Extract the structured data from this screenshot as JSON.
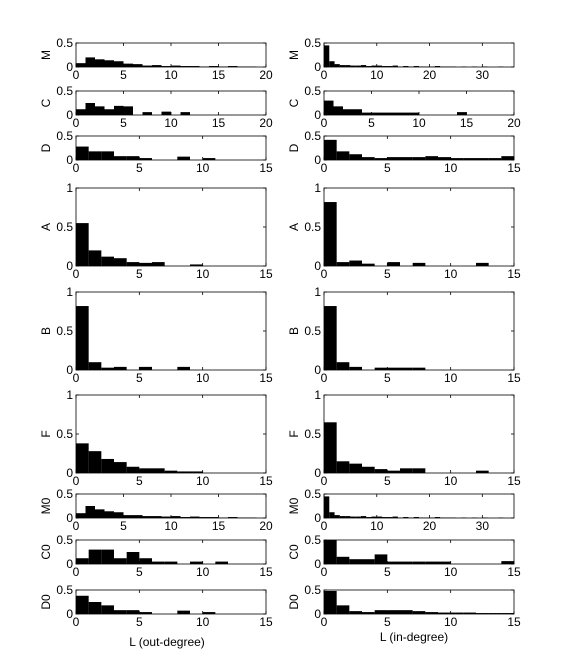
{
  "figure": {
    "xlabel_left": "L (out-degree)",
    "xlabel_right": "L (in-degree)"
  },
  "chart_data": [
    {
      "type": "bar",
      "column": "out",
      "ylabel": "M",
      "xlim": [
        0,
        20
      ],
      "ylim": [
        0,
        0.5
      ],
      "xticks": [
        0,
        5,
        10,
        15,
        20
      ],
      "yticks": [
        0,
        0.5
      ],
      "bin_width": 1,
      "x": [
        0,
        1,
        2,
        3,
        4,
        5,
        6,
        7,
        8,
        9,
        10,
        11,
        12,
        13,
        14,
        15,
        16,
        17,
        18,
        19
      ],
      "values": [
        0.08,
        0.2,
        0.16,
        0.14,
        0.12,
        0.07,
        0.06,
        0.03,
        0.04,
        0.02,
        0.03,
        0.02,
        0.02,
        0.01,
        0.02,
        0.01,
        0.02,
        0.01,
        0.01,
        0.0
      ]
    },
    {
      "type": "bar",
      "column": "in",
      "ylabel": "M",
      "xlim": [
        0,
        36
      ],
      "ylim": [
        0,
        0.5
      ],
      "xticks": [
        0,
        10,
        20,
        30
      ],
      "yticks": [
        0,
        0.5
      ],
      "bin_width": 1,
      "x": [
        0,
        1,
        2,
        3,
        4,
        5,
        6,
        7,
        8,
        9,
        10,
        11,
        12,
        13,
        14,
        15,
        16,
        17,
        18,
        19,
        20,
        21,
        22,
        23,
        24,
        25,
        26,
        27,
        28,
        29,
        30,
        31,
        32,
        33,
        34,
        35
      ],
      "values": [
        0.45,
        0.12,
        0.06,
        0.04,
        0.04,
        0.03,
        0.03,
        0.04,
        0.02,
        0.03,
        0.03,
        0.02,
        0.02,
        0.03,
        0.01,
        0.02,
        0.01,
        0.02,
        0.01,
        0.01,
        0.01,
        0.02,
        0.01,
        0.01,
        0.01,
        0.0,
        0.01,
        0.0,
        0.01,
        0.0,
        0.01,
        0.0,
        0.0,
        0.01,
        0.0,
        0.0
      ]
    },
    {
      "type": "bar",
      "column": "out",
      "ylabel": "C",
      "xlim": [
        0,
        20
      ],
      "ylim": [
        0,
        0.5
      ],
      "xticks": [
        0,
        5,
        10,
        15,
        20
      ],
      "yticks": [
        0,
        0.5
      ],
      "bin_width": 1,
      "x": [
        0,
        1,
        2,
        3,
        4,
        5,
        6,
        7,
        8,
        9,
        10,
        11,
        12,
        13,
        14,
        15,
        16,
        17,
        18,
        19
      ],
      "values": [
        0.12,
        0.25,
        0.18,
        0.12,
        0.19,
        0.18,
        0.0,
        0.06,
        0.0,
        0.07,
        0.0,
        0.06,
        0.0,
        0.0,
        0.0,
        0.0,
        0.0,
        0.0,
        0.0,
        0.0
      ]
    },
    {
      "type": "bar",
      "column": "in",
      "ylabel": "C",
      "xlim": [
        0,
        20
      ],
      "ylim": [
        0,
        0.5
      ],
      "xticks": [
        0,
        5,
        10,
        15,
        20
      ],
      "yticks": [
        0,
        0.5
      ],
      "bin_width": 1,
      "x": [
        0,
        1,
        2,
        3,
        4,
        5,
        6,
        7,
        8,
        9,
        10,
        11,
        12,
        13,
        14,
        15,
        16,
        17,
        18,
        19
      ],
      "values": [
        0.3,
        0.18,
        0.12,
        0.12,
        0.05,
        0.05,
        0.05,
        0.05,
        0.05,
        0.05,
        0.0,
        0.0,
        0.0,
        0.0,
        0.06,
        0.0,
        0.0,
        0.0,
        0.0,
        0.0
      ]
    },
    {
      "type": "bar",
      "column": "out",
      "ylabel": "D",
      "xlim": [
        0,
        15
      ],
      "ylim": [
        0,
        0.5
      ],
      "xticks": [
        0,
        5,
        10,
        15
      ],
      "yticks": [
        0,
        0.5
      ],
      "bin_width": 1,
      "x": [
        0,
        1,
        2,
        3,
        4,
        5,
        6,
        7,
        8,
        9,
        10,
        11,
        12,
        13,
        14
      ],
      "values": [
        0.28,
        0.18,
        0.18,
        0.08,
        0.08,
        0.04,
        0.0,
        0.0,
        0.07,
        0.0,
        0.04,
        0.0,
        0.0,
        0.0,
        0.0
      ]
    },
    {
      "type": "bar",
      "column": "in",
      "ylabel": "D",
      "xlim": [
        0,
        15
      ],
      "ylim": [
        0,
        0.5
      ],
      "xticks": [
        0,
        5,
        10,
        15
      ],
      "yticks": [
        0,
        0.5
      ],
      "bin_width": 1,
      "x": [
        0,
        1,
        2,
        3,
        4,
        5,
        6,
        7,
        8,
        9,
        10,
        11,
        12,
        13,
        14
      ],
      "values": [
        0.42,
        0.18,
        0.12,
        0.06,
        0.04,
        0.06,
        0.06,
        0.06,
        0.08,
        0.06,
        0.04,
        0.04,
        0.04,
        0.04,
        0.08
      ]
    },
    {
      "type": "bar",
      "column": "out",
      "ylabel": "A",
      "xlim": [
        0,
        15
      ],
      "ylim": [
        0,
        1
      ],
      "xticks": [
        0,
        5,
        10,
        15
      ],
      "yticks": [
        0,
        0.5,
        1
      ],
      "bin_width": 1,
      "x": [
        0,
        1,
        2,
        3,
        4,
        5,
        6,
        7,
        8,
        9,
        10,
        11,
        12,
        13,
        14
      ],
      "values": [
        0.55,
        0.2,
        0.12,
        0.1,
        0.05,
        0.04,
        0.05,
        0.0,
        0.0,
        0.02,
        0.0,
        0.0,
        0.0,
        0.0,
        0.0
      ]
    },
    {
      "type": "bar",
      "column": "in",
      "ylabel": "A",
      "xlim": [
        0,
        15
      ],
      "ylim": [
        0,
        1
      ],
      "xticks": [
        0,
        5,
        10,
        15
      ],
      "yticks": [
        0,
        0.5,
        1
      ],
      "bin_width": 1,
      "x": [
        0,
        1,
        2,
        3,
        4,
        5,
        6,
        7,
        8,
        9,
        10,
        11,
        12,
        13,
        14
      ],
      "values": [
        0.82,
        0.05,
        0.07,
        0.03,
        0.0,
        0.05,
        0.0,
        0.04,
        0.0,
        0.0,
        0.0,
        0.0,
        0.04,
        0.0,
        0.0
      ]
    },
    {
      "type": "bar",
      "column": "out",
      "ylabel": "B",
      "xlim": [
        0,
        15
      ],
      "ylim": [
        0,
        1
      ],
      "xticks": [
        0,
        5,
        10,
        15
      ],
      "yticks": [
        0,
        0.5,
        1
      ],
      "bin_width": 1,
      "x": [
        0,
        1,
        2,
        3,
        4,
        5,
        6,
        7,
        8,
        9,
        10,
        11,
        12,
        13,
        14
      ],
      "values": [
        0.82,
        0.1,
        0.03,
        0.04,
        0.0,
        0.04,
        0.0,
        0.0,
        0.04,
        0.0,
        0.0,
        0.0,
        0.0,
        0.0,
        0.0
      ]
    },
    {
      "type": "bar",
      "column": "in",
      "ylabel": "B",
      "xlim": [
        0,
        15
      ],
      "ylim": [
        0,
        1
      ],
      "xticks": [
        0,
        5,
        10,
        15
      ],
      "yticks": [
        0,
        0.5,
        1
      ],
      "bin_width": 1,
      "x": [
        0,
        1,
        2,
        3,
        4,
        5,
        6,
        7,
        8,
        9,
        10,
        11,
        12,
        13,
        14
      ],
      "values": [
        0.82,
        0.1,
        0.04,
        0.0,
        0.03,
        0.03,
        0.03,
        0.03,
        0.0,
        0.0,
        0.0,
        0.0,
        0.0,
        0.0,
        0.0
      ]
    },
    {
      "type": "bar",
      "column": "out",
      "ylabel": "F",
      "xlim": [
        0,
        15
      ],
      "ylim": [
        0,
        1
      ],
      "xticks": [
        0,
        5,
        10,
        15
      ],
      "yticks": [
        0,
        0.5,
        1
      ],
      "bin_width": 1,
      "x": [
        0,
        1,
        2,
        3,
        4,
        5,
        6,
        7,
        8,
        9,
        10,
        11,
        12,
        13,
        14
      ],
      "values": [
        0.38,
        0.28,
        0.18,
        0.14,
        0.08,
        0.06,
        0.06,
        0.03,
        0.02,
        0.02,
        0.0,
        0.0,
        0.0,
        0.0,
        0.0
      ]
    },
    {
      "type": "bar",
      "column": "in",
      "ylabel": "F",
      "xlim": [
        0,
        15
      ],
      "ylim": [
        0,
        1
      ],
      "xticks": [
        0,
        5,
        10,
        15
      ],
      "yticks": [
        0,
        0.5,
        1
      ],
      "bin_width": 1,
      "x": [
        0,
        1,
        2,
        3,
        4,
        5,
        6,
        7,
        8,
        9,
        10,
        11,
        12,
        13,
        14
      ],
      "values": [
        0.65,
        0.15,
        0.12,
        0.08,
        0.05,
        0.03,
        0.06,
        0.06,
        0.0,
        0.0,
        0.0,
        0.0,
        0.03,
        0.0,
        0.0
      ]
    },
    {
      "type": "bar",
      "column": "out",
      "ylabel": "M0",
      "xlim": [
        0,
        20
      ],
      "ylim": [
        0,
        0.5
      ],
      "xticks": [
        0,
        5,
        10,
        15,
        20
      ],
      "yticks": [
        0,
        0.5
      ],
      "bin_width": 1,
      "x": [
        0,
        1,
        2,
        3,
        4,
        5,
        6,
        7,
        8,
        9,
        10,
        11,
        12,
        13,
        14,
        15,
        16,
        17,
        18,
        19
      ],
      "values": [
        0.1,
        0.25,
        0.18,
        0.14,
        0.12,
        0.06,
        0.06,
        0.04,
        0.04,
        0.03,
        0.04,
        0.02,
        0.03,
        0.02,
        0.02,
        0.01,
        0.02,
        0.01,
        0.01,
        0.0
      ]
    },
    {
      "type": "bar",
      "column": "in",
      "ylabel": "M0",
      "xlim": [
        0,
        36
      ],
      "ylim": [
        0,
        0.5
      ],
      "xticks": [
        0,
        10,
        20,
        30
      ],
      "yticks": [
        0,
        0.5
      ],
      "bin_width": 1,
      "x": [
        0,
        1,
        2,
        3,
        4,
        5,
        6,
        7,
        8,
        9,
        10,
        11,
        12,
        13,
        14,
        15,
        16,
        17,
        18,
        19,
        20,
        21,
        22,
        23,
        24,
        25,
        26,
        27,
        28,
        29,
        30,
        31,
        32,
        33,
        34,
        35
      ],
      "values": [
        0.45,
        0.12,
        0.06,
        0.04,
        0.04,
        0.03,
        0.03,
        0.04,
        0.02,
        0.03,
        0.03,
        0.02,
        0.02,
        0.03,
        0.01,
        0.02,
        0.01,
        0.02,
        0.01,
        0.01,
        0.01,
        0.02,
        0.01,
        0.01,
        0.01,
        0.0,
        0.01,
        0.0,
        0.01,
        0.0,
        0.01,
        0.0,
        0.0,
        0.01,
        0.0,
        0.0
      ]
    },
    {
      "type": "bar",
      "column": "out",
      "ylabel": "C0",
      "xlim": [
        0,
        15
      ],
      "ylim": [
        0,
        0.5
      ],
      "xticks": [
        0,
        5,
        10,
        15
      ],
      "yticks": [
        0,
        0.5
      ],
      "bin_width": 1,
      "x": [
        0,
        1,
        2,
        3,
        4,
        5,
        6,
        7,
        8,
        9,
        10,
        11,
        12,
        13,
        14
      ],
      "values": [
        0.12,
        0.3,
        0.3,
        0.12,
        0.25,
        0.12,
        0.05,
        0.05,
        0.0,
        0.05,
        0.0,
        0.05,
        0.0,
        0.0,
        0.0
      ]
    },
    {
      "type": "bar",
      "column": "in",
      "ylabel": "C0",
      "xlim": [
        0,
        15
      ],
      "ylim": [
        0,
        0.5
      ],
      "xticks": [
        0,
        5,
        10,
        15
      ],
      "yticks": [
        0,
        0.5
      ],
      "bin_width": 1,
      "x": [
        0,
        1,
        2,
        3,
        4,
        5,
        6,
        7,
        8,
        9,
        10,
        11,
        12,
        13,
        14
      ],
      "values": [
        0.5,
        0.15,
        0.1,
        0.1,
        0.2,
        0.05,
        0.05,
        0.05,
        0.05,
        0.05,
        0.0,
        0.0,
        0.0,
        0.0,
        0.06
      ]
    },
    {
      "type": "bar",
      "column": "out",
      "ylabel": "D0",
      "xlim": [
        0,
        15
      ],
      "ylim": [
        0,
        0.5
      ],
      "xticks": [
        0,
        5,
        10,
        15
      ],
      "yticks": [
        0,
        0.5
      ],
      "bin_width": 1,
      "x": [
        0,
        1,
        2,
        3,
        4,
        5,
        6,
        7,
        8,
        9,
        10,
        11,
        12,
        13,
        14
      ],
      "values": [
        0.38,
        0.25,
        0.18,
        0.08,
        0.08,
        0.04,
        0.0,
        0.0,
        0.07,
        0.0,
        0.04,
        0.0,
        0.0,
        0.0,
        0.0
      ]
    },
    {
      "type": "bar",
      "column": "in",
      "ylabel": "D0",
      "xlim": [
        0,
        15
      ],
      "ylim": [
        0,
        0.5
      ],
      "xticks": [
        0,
        5,
        10,
        15
      ],
      "yticks": [
        0,
        0.5
      ],
      "bin_width": 1,
      "x": [
        0,
        1,
        2,
        3,
        4,
        5,
        6,
        7,
        8,
        9,
        10,
        11,
        12,
        13,
        14
      ],
      "values": [
        0.48,
        0.18,
        0.06,
        0.04,
        0.08,
        0.08,
        0.08,
        0.06,
        0.04,
        0.03,
        0.03,
        0.03,
        0.02,
        0.02,
        0.02
      ]
    }
  ]
}
